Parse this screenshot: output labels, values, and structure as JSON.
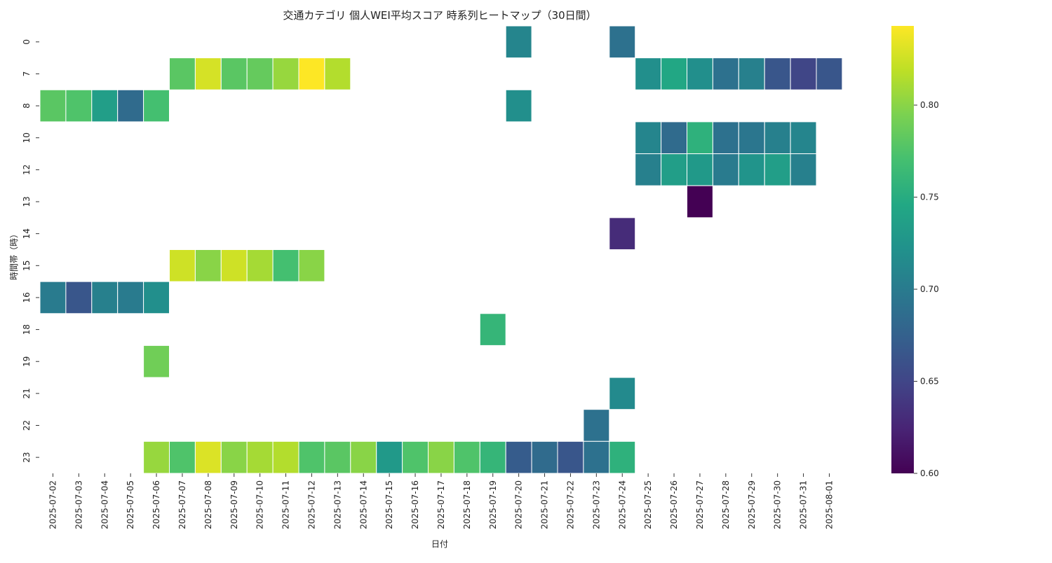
{
  "chart_data": {
    "type": "heatmap",
    "title": "交通カテゴリ 個人WEI平均スコア 時系列ヒートマップ（30日間）",
    "xlabel": "日付",
    "ylabel": "時間帯（時）",
    "x_categories": [
      "2025-07-02",
      "2025-07-03",
      "2025-07-04",
      "2025-07-05",
      "2025-07-06",
      "2025-07-07",
      "2025-07-08",
      "2025-07-09",
      "2025-07-10",
      "2025-07-11",
      "2025-07-12",
      "2025-07-13",
      "2025-07-14",
      "2025-07-15",
      "2025-07-16",
      "2025-07-17",
      "2025-07-18",
      "2025-07-19",
      "2025-07-20",
      "2025-07-21",
      "2025-07-22",
      "2025-07-23",
      "2025-07-24",
      "2025-07-25",
      "2025-07-26",
      "2025-07-27",
      "2025-07-28",
      "2025-07-29",
      "2025-07-30",
      "2025-07-31",
      "2025-08-01"
    ],
    "y_categories": [
      "0",
      "7",
      "8",
      "10",
      "12",
      "13",
      "14",
      "15",
      "16",
      "18",
      "19",
      "21",
      "22",
      "23"
    ],
    "colorscale": "viridis",
    "vmin": 0.6,
    "vmax": 0.843,
    "colorbar_ticks": [
      "0.60",
      "0.65",
      "0.70",
      "0.75",
      "0.80"
    ],
    "cells": [
      {
        "hour": "0",
        "date": "2025-07-20",
        "value": 0.71
      },
      {
        "hour": "0",
        "date": "2025-07-24",
        "value": 0.69
      },
      {
        "hour": "7",
        "date": "2025-07-07",
        "value": 0.78
      },
      {
        "hour": "7",
        "date": "2025-07-08",
        "value": 0.828
      },
      {
        "hour": "7",
        "date": "2025-07-09",
        "value": 0.78
      },
      {
        "hour": "7",
        "date": "2025-07-10",
        "value": 0.785
      },
      {
        "hour": "7",
        "date": "2025-07-11",
        "value": 0.805
      },
      {
        "hour": "7",
        "date": "2025-07-12",
        "value": 0.843
      },
      {
        "hour": "7",
        "date": "2025-07-13",
        "value": 0.815
      },
      {
        "hour": "7",
        "date": "2025-07-25",
        "value": 0.72
      },
      {
        "hour": "7",
        "date": "2025-07-26",
        "value": 0.745
      },
      {
        "hour": "7",
        "date": "2025-07-27",
        "value": 0.72
      },
      {
        "hour": "7",
        "date": "2025-07-28",
        "value": 0.69
      },
      {
        "hour": "7",
        "date": "2025-07-29",
        "value": 0.705
      },
      {
        "hour": "7",
        "date": "2025-07-30",
        "value": 0.665
      },
      {
        "hour": "7",
        "date": "2025-07-31",
        "value": 0.65
      },
      {
        "hour": "7",
        "date": "2025-08-01",
        "value": 0.665
      },
      {
        "hour": "8",
        "date": "2025-07-02",
        "value": 0.78
      },
      {
        "hour": "8",
        "date": "2025-07-03",
        "value": 0.775
      },
      {
        "hour": "8",
        "date": "2025-07-04",
        "value": 0.735
      },
      {
        "hour": "8",
        "date": "2025-07-05",
        "value": 0.685
      },
      {
        "hour": "8",
        "date": "2025-07-06",
        "value": 0.77
      },
      {
        "hour": "8",
        "date": "2025-07-20",
        "value": 0.72
      },
      {
        "hour": "10",
        "date": "2025-07-25",
        "value": 0.71
      },
      {
        "hour": "10",
        "date": "2025-07-26",
        "value": 0.685
      },
      {
        "hour": "10",
        "date": "2025-07-27",
        "value": 0.755
      },
      {
        "hour": "10",
        "date": "2025-07-28",
        "value": 0.69
      },
      {
        "hour": "10",
        "date": "2025-07-29",
        "value": 0.695
      },
      {
        "hour": "10",
        "date": "2025-07-30",
        "value": 0.705
      },
      {
        "hour": "10",
        "date": "2025-07-31",
        "value": 0.71
      },
      {
        "hour": "12",
        "date": "2025-07-25",
        "value": 0.705
      },
      {
        "hour": "12",
        "date": "2025-07-26",
        "value": 0.735
      },
      {
        "hour": "12",
        "date": "2025-07-27",
        "value": 0.73
      },
      {
        "hour": "12",
        "date": "2025-07-28",
        "value": 0.7
      },
      {
        "hour": "12",
        "date": "2025-07-29",
        "value": 0.725
      },
      {
        "hour": "12",
        "date": "2025-07-30",
        "value": 0.735
      },
      {
        "hour": "12",
        "date": "2025-07-31",
        "value": 0.705
      },
      {
        "hour": "13",
        "date": "2025-07-27",
        "value": 0.6
      },
      {
        "hour": "14",
        "date": "2025-07-24",
        "value": 0.63
      },
      {
        "hour": "15",
        "date": "2025-07-07",
        "value": 0.825
      },
      {
        "hour": "15",
        "date": "2025-07-08",
        "value": 0.8
      },
      {
        "hour": "15",
        "date": "2025-07-09",
        "value": 0.825
      },
      {
        "hour": "15",
        "date": "2025-07-10",
        "value": 0.81
      },
      {
        "hour": "15",
        "date": "2025-07-11",
        "value": 0.77
      },
      {
        "hour": "15",
        "date": "2025-07-12",
        "value": 0.8
      },
      {
        "hour": "16",
        "date": "2025-07-02",
        "value": 0.7
      },
      {
        "hour": "16",
        "date": "2025-07-03",
        "value": 0.665
      },
      {
        "hour": "16",
        "date": "2025-07-04",
        "value": 0.705
      },
      {
        "hour": "16",
        "date": "2025-07-05",
        "value": 0.7
      },
      {
        "hour": "16",
        "date": "2025-07-06",
        "value": 0.72
      },
      {
        "hour": "18",
        "date": "2025-07-19",
        "value": 0.76
      },
      {
        "hour": "19",
        "date": "2025-07-06",
        "value": 0.79
      },
      {
        "hour": "21",
        "date": "2025-07-24",
        "value": 0.715
      },
      {
        "hour": "22",
        "date": "2025-07-23",
        "value": 0.69
      },
      {
        "hour": "23",
        "date": "2025-07-06",
        "value": 0.805
      },
      {
        "hour": "23",
        "date": "2025-07-07",
        "value": 0.775
      },
      {
        "hour": "23",
        "date": "2025-07-08",
        "value": 0.83
      },
      {
        "hour": "23",
        "date": "2025-07-09",
        "value": 0.8
      },
      {
        "hour": "23",
        "date": "2025-07-10",
        "value": 0.81
      },
      {
        "hour": "23",
        "date": "2025-07-11",
        "value": 0.815
      },
      {
        "hour": "23",
        "date": "2025-07-12",
        "value": 0.775
      },
      {
        "hour": "23",
        "date": "2025-07-13",
        "value": 0.78
      },
      {
        "hour": "23",
        "date": "2025-07-14",
        "value": 0.8
      },
      {
        "hour": "23",
        "date": "2025-07-15",
        "value": 0.73
      },
      {
        "hour": "23",
        "date": "2025-07-16",
        "value": 0.775
      },
      {
        "hour": "23",
        "date": "2025-07-17",
        "value": 0.8
      },
      {
        "hour": "23",
        "date": "2025-07-18",
        "value": 0.775
      },
      {
        "hour": "23",
        "date": "2025-07-19",
        "value": 0.76
      },
      {
        "hour": "23",
        "date": "2025-07-20",
        "value": 0.67
      },
      {
        "hour": "23",
        "date": "2025-07-21",
        "value": 0.685
      },
      {
        "hour": "23",
        "date": "2025-07-22",
        "value": 0.665
      },
      {
        "hour": "23",
        "date": "2025-07-23",
        "value": 0.69
      },
      {
        "hour": "23",
        "date": "2025-07-24",
        "value": 0.755
      }
    ]
  }
}
